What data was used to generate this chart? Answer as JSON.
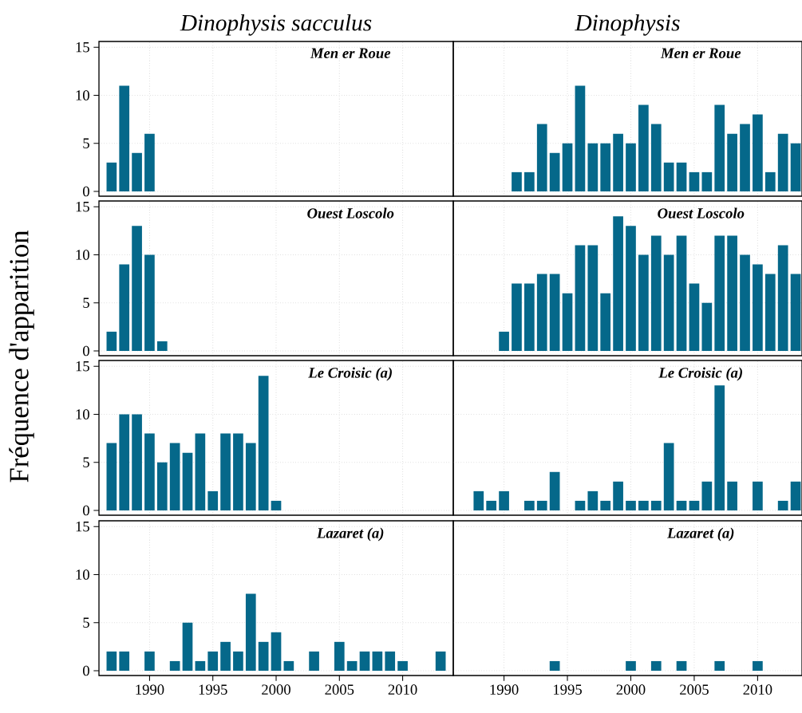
{
  "chart_data": [
    {
      "type": "bar",
      "title": "Dinophysis sacculus",
      "subtitle": "Men er Roue",
      "ylabel": "Fréquence d'apparition",
      "x": [
        1987,
        1988,
        1989,
        1990
      ],
      "values": [
        3,
        11,
        4,
        6
      ],
      "color": "#05688a",
      "xlim": [
        1986,
        2014
      ],
      "ylim": [
        -0.5,
        15.6
      ],
      "xticks": [
        1990,
        1995,
        2000,
        2005,
        2010
      ],
      "yticks": [
        0,
        5,
        10,
        15
      ],
      "grid": true,
      "tick_labels": "y"
    },
    {
      "type": "bar",
      "title": "Dinophysis",
      "subtitle": "Men er Roue",
      "x": [
        1991,
        1992,
        1993,
        1994,
        1995,
        1996,
        1997,
        1998,
        1999,
        2000,
        2001,
        2002,
        2003,
        2004,
        2005,
        2006,
        2007,
        2008,
        2009,
        2010,
        2011,
        2012,
        2013
      ],
      "values": [
        2,
        2,
        7,
        4,
        5,
        11,
        5,
        5,
        6,
        5,
        9,
        7,
        3,
        3,
        2,
        2,
        9,
        6,
        7,
        8,
        2,
        6,
        5
      ],
      "color": "#05688a",
      "xlim": [
        1986,
        2013.5
      ],
      "ylim": [
        -0.5,
        15.6
      ],
      "xticks": [
        1990,
        1995,
        2000,
        2005,
        2010
      ],
      "yticks": [
        0,
        5,
        10,
        15
      ],
      "grid": true,
      "tick_labels": false
    },
    {
      "type": "bar",
      "subtitle": "Ouest Loscolo",
      "x": [
        1987,
        1988,
        1989,
        1990,
        1991
      ],
      "values": [
        2,
        9,
        13,
        10,
        1
      ],
      "color": "#05688a",
      "xlim": [
        1986,
        2014
      ],
      "ylim": [
        -0.5,
        15.6
      ],
      "xticks": [
        1990,
        1995,
        2000,
        2005,
        2010
      ],
      "yticks": [
        0,
        5,
        10,
        15
      ],
      "grid": true,
      "tick_labels": "y"
    },
    {
      "type": "bar",
      "subtitle": "Ouest Loscolo",
      "x": [
        1990,
        1991,
        1992,
        1993,
        1994,
        1995,
        1996,
        1997,
        1998,
        1999,
        2000,
        2001,
        2002,
        2003,
        2004,
        2005,
        2006,
        2007,
        2008,
        2009,
        2010,
        2011,
        2012,
        2013
      ],
      "values": [
        2,
        7,
        7,
        8,
        8,
        6,
        11,
        11,
        6,
        14,
        13,
        10,
        12,
        10,
        12,
        7,
        5,
        12,
        12,
        10,
        9,
        8,
        11,
        8
      ],
      "color": "#05688a",
      "xlim": [
        1986,
        2013.5
      ],
      "ylim": [
        -0.5,
        15.6
      ],
      "xticks": [
        1990,
        1995,
        2000,
        2005,
        2010
      ],
      "yticks": [
        0,
        5,
        10,
        15
      ],
      "grid": true,
      "tick_labels": false
    },
    {
      "type": "bar",
      "subtitle": "Le Croisic (a)",
      "x": [
        1987,
        1988,
        1989,
        1990,
        1991,
        1992,
        1993,
        1994,
        1995,
        1996,
        1997,
        1998,
        1999,
        2000
      ],
      "values": [
        7,
        10,
        10,
        8,
        5,
        7,
        6,
        8,
        2,
        8,
        8,
        7,
        14,
        1
      ],
      "color": "#05688a",
      "xlim": [
        1986,
        2014
      ],
      "ylim": [
        -0.5,
        15.6
      ],
      "xticks": [
        1990,
        1995,
        2000,
        2005,
        2010
      ],
      "yticks": [
        0,
        5,
        10,
        15
      ],
      "grid": true,
      "tick_labels": "y"
    },
    {
      "type": "bar",
      "subtitle": "Le Croisic (a)",
      "x": [
        1988,
        1989,
        1990,
        1992,
        1993,
        1994,
        1996,
        1997,
        1998,
        1999,
        2000,
        2001,
        2002,
        2003,
        2004,
        2005,
        2006,
        2007,
        2008,
        2010,
        2012,
        2013
      ],
      "values": [
        2,
        1,
        2,
        1,
        1,
        4,
        1,
        2,
        1,
        3,
        1,
        1,
        1,
        7,
        1,
        1,
        3,
        13,
        3,
        3,
        1,
        3
      ],
      "color": "#05688a",
      "xlim": [
        1986,
        2013.5
      ],
      "ylim": [
        -0.5,
        15.6
      ],
      "xticks": [
        1990,
        1995,
        2000,
        2005,
        2010
      ],
      "yticks": [
        0,
        5,
        10,
        15
      ],
      "grid": true,
      "tick_labels": false
    },
    {
      "type": "bar",
      "subtitle": "Lazaret (a)",
      "x": [
        1987,
        1988,
        1990,
        1992,
        1993,
        1994,
        1995,
        1996,
        1997,
        1998,
        1999,
        2000,
        2001,
        2003,
        2005,
        2006,
        2007,
        2008,
        2009,
        2010,
        2013
      ],
      "values": [
        2,
        2,
        2,
        1,
        5,
        1,
        2,
        3,
        2,
        8,
        3,
        4,
        1,
        2,
        3,
        1,
        2,
        2,
        2,
        1,
        2
      ],
      "color": "#05688a",
      "xlim": [
        1986,
        2014
      ],
      "ylim": [
        -0.5,
        15.6
      ],
      "xticks": [
        1990,
        1995,
        2000,
        2005,
        2010
      ],
      "yticks": [
        0,
        5,
        10,
        15
      ],
      "grid": true
    },
    {
      "type": "bar",
      "subtitle": "Lazaret (a)",
      "x": [
        1994,
        2000,
        2002,
        2004,
        2007,
        2010
      ],
      "values": [
        1,
        1,
        1,
        1,
        1,
        1
      ],
      "color": "#05688a",
      "xlim": [
        1986,
        2013.5
      ],
      "ylim": [
        -0.5,
        15.6
      ],
      "xticks": [
        1990,
        1995,
        2000,
        2005,
        2010
      ],
      "yticks": [
        0,
        5,
        10,
        15
      ],
      "grid": true,
      "tick_labels": "x"
    }
  ]
}
